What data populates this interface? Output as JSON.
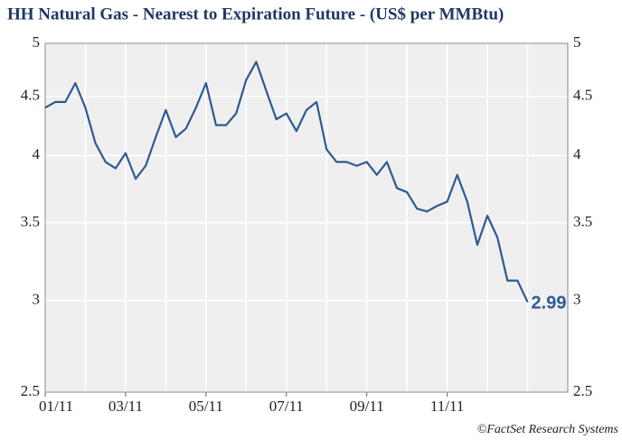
{
  "chart_data": {
    "type": "line",
    "title": "HH Natural Gas - Nearest to Expiration Future - (US$ per MMBtu)",
    "source": "©FactSet Research Systems",
    "x": [
      0,
      0.25,
      0.5,
      0.75,
      1,
      1.25,
      1.5,
      1.75,
      2,
      2.25,
      2.5,
      2.75,
      3,
      3.25,
      3.5,
      3.75,
      4,
      4.25,
      4.5,
      4.75,
      5,
      5.25,
      5.5,
      5.75,
      6,
      6.25,
      6.5,
      6.75,
      7,
      7.25,
      7.5,
      7.75,
      8,
      8.25,
      8.5,
      8.75,
      9,
      9.25,
      9.5,
      9.75,
      10,
      10.25,
      10.5,
      10.75,
      11,
      11.25,
      11.5,
      11.75,
      12
    ],
    "series": [
      {
        "name": "HH Natural Gas",
        "color": "#2e5a92",
        "values": [
          4.4,
          4.45,
          4.45,
          4.62,
          4.4,
          4.1,
          3.95,
          3.9,
          4.02,
          3.82,
          3.92,
          4.15,
          4.38,
          4.15,
          4.22,
          4.4,
          4.62,
          4.25,
          4.25,
          4.35,
          4.65,
          4.82,
          4.55,
          4.3,
          4.35,
          4.2,
          4.38,
          4.45,
          4.05,
          3.95,
          3.95,
          3.92,
          3.95,
          3.85,
          3.95,
          3.75,
          3.72,
          3.6,
          3.58,
          3.62,
          3.65,
          3.85,
          3.65,
          3.35,
          3.55,
          3.4,
          3.12,
          3.12,
          2.99
        ]
      }
    ],
    "xlim": [
      0,
      13
    ],
    "xticks": [
      {
        "value": 0,
        "label": "01/11"
      },
      {
        "value": 2,
        "label": "03/11"
      },
      {
        "value": 4,
        "label": "05/11"
      },
      {
        "value": 6,
        "label": "07/11"
      },
      {
        "value": 8,
        "label": "09/11"
      },
      {
        "value": 10,
        "label": "11/11"
      }
    ],
    "minor_xticks": [
      1,
      3,
      5,
      7,
      9,
      11,
      12
    ],
    "ylim": [
      2.5,
      5
    ],
    "yticks": [
      2.5,
      3,
      3.5,
      4,
      4.5,
      5
    ],
    "log_scale": true,
    "grid": true,
    "y_labels_both_sides": true,
    "last_value_label": true
  }
}
